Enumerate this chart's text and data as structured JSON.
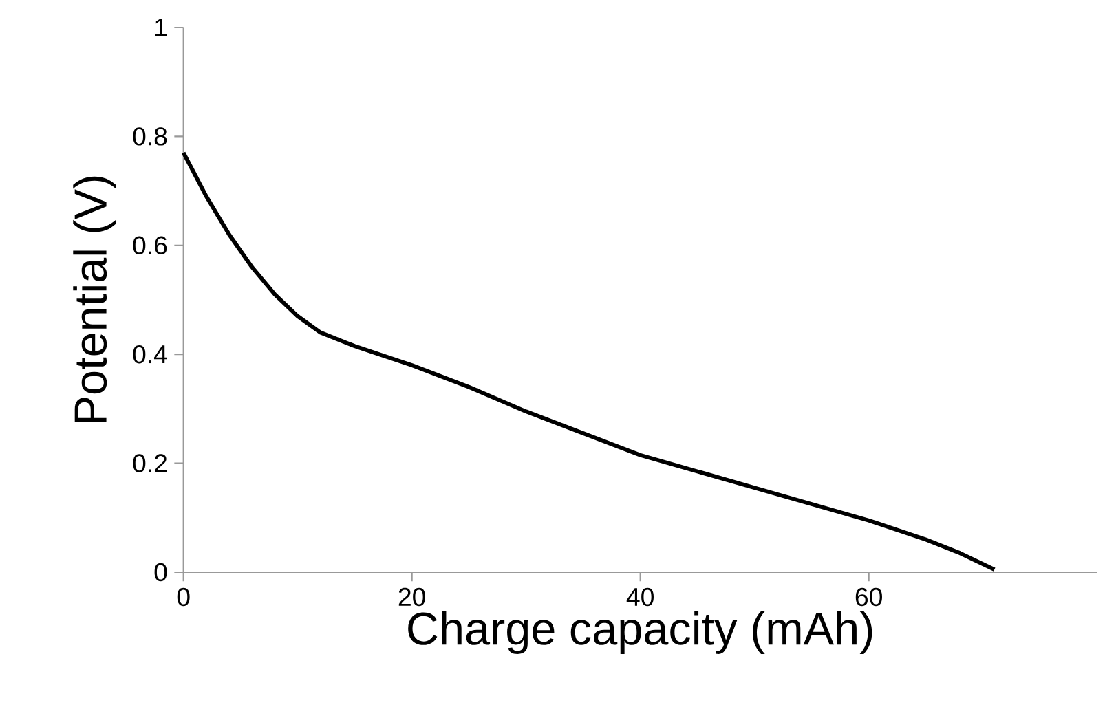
{
  "chart_data": {
    "type": "line",
    "xlabel": "Charge capacity (mAh)",
    "ylabel": "Potential (V)",
    "x": [
      0,
      2,
      4,
      6,
      8,
      10,
      12,
      15,
      20,
      25,
      30,
      35,
      40,
      45,
      50,
      55,
      60,
      65,
      68,
      71
    ],
    "series": [
      {
        "color": "#000000",
        "values": [
          0.77,
          0.69,
          0.62,
          0.56,
          0.51,
          0.47,
          0.44,
          0.415,
          0.38,
          0.34,
          0.295,
          0.255,
          0.215,
          0.185,
          0.155,
          0.125,
          0.095,
          0.06,
          0.035,
          0.005
        ]
      }
    ],
    "xlim": [
      0,
      80
    ],
    "ylim": [
      0,
      1
    ],
    "xticks": [
      0,
      20,
      40,
      60
    ],
    "yticks": [
      0,
      0.2,
      0.4,
      0.6,
      0.8,
      1
    ],
    "grid": false,
    "marker": "none",
    "line_style": "solid"
  }
}
